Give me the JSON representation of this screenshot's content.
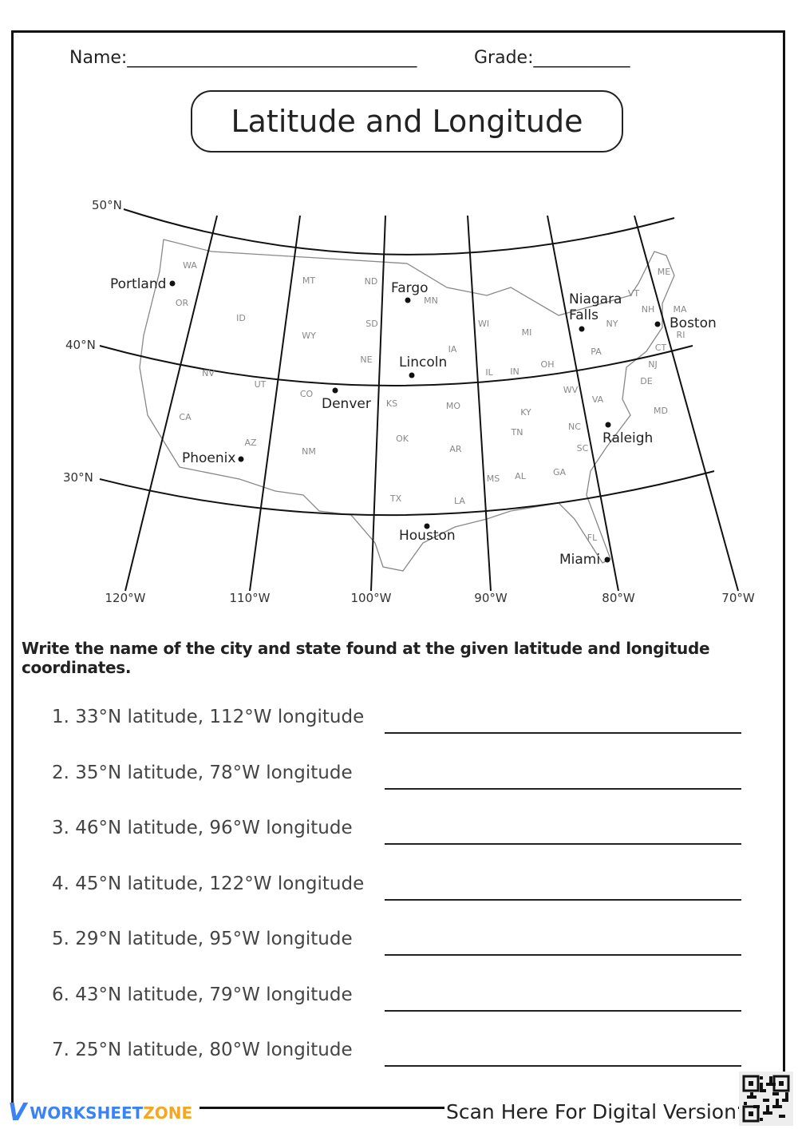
{
  "header": {
    "name_label": "Name:_________________________________",
    "grade_label": "Grade:___________"
  },
  "title": "Latitude and Longitude",
  "map": {
    "latitudes": [
      "50°N",
      "40°N",
      "30°N"
    ],
    "longitudes": [
      "120°W",
      "110°W",
      "100°W",
      "90°W",
      "80°W",
      "70°W"
    ],
    "states": [
      "WA",
      "OR",
      "CA",
      "NV",
      "ID",
      "MT",
      "WY",
      "UT",
      "AZ",
      "CO",
      "NM",
      "ND",
      "SD",
      "NE",
      "KS",
      "OK",
      "TX",
      "MN",
      "IA",
      "MO",
      "AR",
      "LA",
      "WI",
      "IL",
      "MI",
      "IN",
      "OH",
      "KY",
      "TN",
      "MS",
      "AL",
      "GA",
      "FL",
      "SC",
      "NC",
      "VA",
      "WV",
      "PA",
      "NY",
      "VT",
      "NH",
      "ME",
      "MA",
      "RI",
      "CT",
      "NJ",
      "DE",
      "MD"
    ],
    "cities": [
      "Portland",
      "Fargo",
      "Niagara Falls",
      "Boston",
      "Lincoln",
      "Denver",
      "Phoenix",
      "Raleigh",
      "Houston",
      "Miami"
    ]
  },
  "instructions": "Write the name of the city and state found at the given latitude and longitude coordinates.",
  "questions": [
    "1. 33°N latitude, 112°W longitude",
    "2. 35°N latitude, 78°W longitude",
    "3. 46°N latitude, 96°W longitude",
    "4. 45°N latitude, 122°W longitude",
    "5. 29°N latitude, 95°W longitude",
    "6. 43°N latitude, 79°W longitude",
    "7. 25°N latitude, 80°W longitude"
  ],
  "footer": {
    "logo_part1": "WORKSHEET",
    "logo_part2": "ZONE",
    "scan_text": "Scan Here For Digital Version"
  },
  "colors": {
    "logo_blue": "#3b82f6",
    "logo_orange": "#f5a623"
  }
}
